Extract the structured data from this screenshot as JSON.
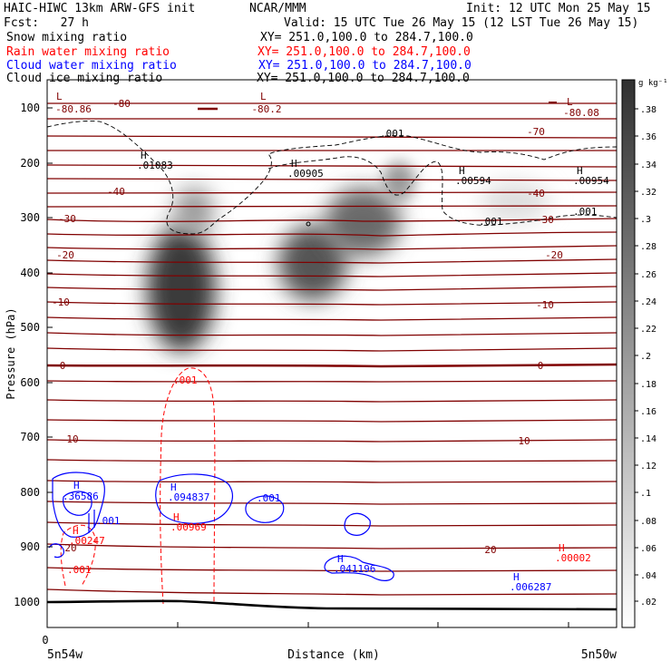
{
  "header": {
    "left1": "HAIC-HIWC 13km ARW-GFS init",
    "center1": "NCAR/MMM",
    "right1": "Init: 12 UTC Mon 25 May 15",
    "left2": "Fcst:   27 h",
    "right2": "Valid: 15 UTC Tue 26 May 15 (12 LST Tue 26 May 15)",
    "fields": [
      {
        "label": "Snow mixing ratio",
        "xy": "XY= 251.0,100.0 to 284.7,100.0",
        "color": "#000000"
      },
      {
        "label": "Rain water mixing ratio",
        "xy": "XY= 251.0,100.0 to 284.7,100.0",
        "color": "#ff0000"
      },
      {
        "label": "Cloud water mixing ratio",
        "xy": "XY= 251.0,100.0 to 284.7,100.0",
        "color": "#0000ff"
      },
      {
        "label": "Cloud ice mixing ratio",
        "xy": "XY= 251.0,100.0 to 284.7,100.0",
        "color": "#000000"
      }
    ]
  },
  "chart_data": {
    "type": "heatmap",
    "xlabel": "Distance (km)",
    "ylabel": "Pressure (hPa)",
    "x_ticks": [
      "0"
    ],
    "x_endpoints": [
      "5n54w",
      "5n50w"
    ],
    "y_ticks": [
      100,
      200,
      300,
      400,
      500,
      600,
      700,
      800,
      900,
      1000
    ],
    "ylim": [
      1050,
      50
    ],
    "colorbar": {
      "unit": "g kg⁻¹",
      "ticks": [
        ".02",
        ".04",
        ".06",
        ".08",
        ".1",
        ".12",
        ".14",
        ".16",
        ".18",
        ".2",
        ".22",
        ".24",
        ".26",
        ".28",
        ".3",
        ".32",
        ".34",
        ".36",
        ".38"
      ],
      "min_color": "#ffffff",
      "max_color": "#303030"
    },
    "temperature_contours": {
      "units": "C",
      "color": "#800000",
      "labels": [
        "-80",
        "-80.86",
        "-80.2",
        "-80.08",
        "-70",
        "-40",
        "-30",
        "-20",
        "-10",
        "0",
        "10",
        "20"
      ]
    },
    "annotations": [
      {
        "text": "L",
        "color": "#800000"
      },
      {
        "text": "L",
        "color": "#800000"
      },
      {
        "text": "L",
        "color": "#800000"
      },
      {
        "text": "H",
        "color": "#000000"
      },
      {
        "text": ".01083",
        "color": "#000000"
      },
      {
        "text": "H",
        "color": "#000000"
      },
      {
        "text": ".00905",
        "color": "#000000"
      },
      {
        "text": "H",
        "color": "#000000"
      },
      {
        "text": ".00594",
        "color": "#000000"
      },
      {
        "text": "H",
        "color": "#000000"
      },
      {
        "text": ".00954",
        "color": "#000000"
      },
      {
        "text": ".001",
        "color": "#000000"
      },
      {
        "text": ".001",
        "color": "#000000"
      },
      {
        "text": ".001",
        "color": "#000000"
      },
      {
        "text": ".001",
        "color": "#ff0000"
      },
      {
        "text": "H",
        "color": "#0000ff"
      },
      {
        "text": ".36586",
        "color": "#0000ff"
      },
      {
        "text": "H",
        "color": "#0000ff"
      },
      {
        "text": ".094837",
        "color": "#0000ff"
      },
      {
        "text": ".001",
        "color": "#0000ff"
      },
      {
        "text": ".001",
        "color": "#0000ff"
      },
      {
        "text": "H",
        "color": "#ff0000"
      },
      {
        "text": ".00247",
        "color": "#ff0000"
      },
      {
        "text": "H",
        "color": "#ff0000"
      },
      {
        "text": ".00969",
        "color": "#ff0000"
      },
      {
        "text": ".001",
        "color": "#ff0000"
      },
      {
        "text": "H",
        "color": "#0000ff"
      },
      {
        "text": ".041196",
        "color": "#0000ff"
      },
      {
        "text": "H",
        "color": "#ff0000"
      },
      {
        "text": ".00002",
        "color": "#ff0000"
      },
      {
        "text": "H",
        "color": "#0000ff"
      },
      {
        "text": ".006287",
        "color": "#0000ff"
      }
    ]
  }
}
